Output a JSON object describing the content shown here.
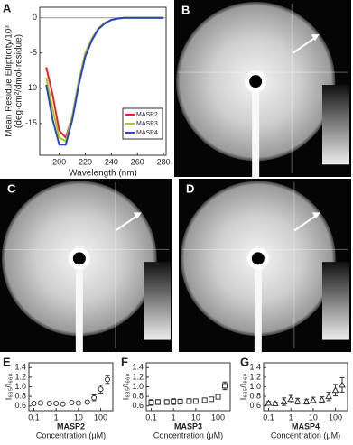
{
  "chart_data": [
    {
      "type": "line",
      "label": "A",
      "xlabel": "Wavelength (nm)",
      "ylabel": [
        "Mean Residue Ellipticity/10³",
        "(deg·cm²/dmol·residue)"
      ],
      "x": [
        190,
        195,
        200,
        205,
        210,
        215,
        220,
        225,
        230,
        235,
        240,
        245,
        250,
        255,
        260,
        265,
        270,
        275,
        280
      ],
      "series": [
        {
          "name": "MASP2",
          "color": "#e0262b",
          "values": [
            -7,
            -11,
            -16,
            -17,
            -14,
            -9,
            -5,
            -3,
            -1.5,
            -0.7,
            -0.3,
            -0.1,
            0,
            0,
            0,
            0,
            0,
            0,
            0
          ]
        },
        {
          "name": "MASP3",
          "color": "#a8c814",
          "values": [
            -8.5,
            -13,
            -17,
            -17.5,
            -14,
            -9,
            -5,
            -3,
            -1.5,
            -0.7,
            -0.3,
            -0.1,
            0,
            0,
            0,
            0,
            0,
            0,
            0
          ]
        },
        {
          "name": "MASP4",
          "color": "#2a46c8",
          "values": [
            -9.5,
            -14.5,
            -18,
            -18,
            -14.5,
            -9.5,
            -5.5,
            -3.2,
            -1.6,
            -0.8,
            -0.3,
            -0.1,
            0,
            0,
            0,
            0,
            0,
            0,
            0
          ]
        }
      ],
      "xlim": [
        185,
        282
      ],
      "xticks": [
        200,
        220,
        240,
        260,
        280
      ],
      "ylim": [
        -19.5,
        1.5
      ],
      "yticks": [
        0,
        -5,
        -10,
        -15
      ],
      "legend": "lower right"
    },
    {
      "type": "scatter",
      "label": "E",
      "xlabel": "Concentration (μM)",
      "ylabel": "I₆₃₅/I₆₆₀",
      "xscale": "log",
      "x": [
        0.1,
        0.2,
        0.5,
        1,
        2,
        5,
        10,
        25,
        50,
        100,
        200
      ],
      "series": [
        {
          "name": "MASP2",
          "color": "#333333",
          "marker": "circle",
          "values": [
            0.65,
            0.66,
            0.65,
            0.65,
            0.64,
            0.67,
            0.66,
            0.68,
            0.77,
            0.95,
            1.15
          ],
          "errors": [
            0.03,
            0.03,
            0.02,
            0.02,
            0.02,
            0.02,
            0.02,
            0.03,
            0.06,
            0.08,
            0.08
          ]
        }
      ],
      "xlim": [
        0.06,
        350
      ],
      "xticks": [
        0.1,
        1,
        10,
        100
      ],
      "ylim": [
        0.5,
        1.5
      ],
      "yticks": [
        0.6,
        0.8,
        {
          "value": 1,
          "label": "1.0"
        },
        1.2,
        1.4
      ]
    },
    {
      "type": "scatter",
      "label": "F",
      "xlabel": "Concentration (μM)",
      "ylabel": "I₆₃₅/I₆₆₀",
      "xscale": "log",
      "x": [
        0.1,
        0.2,
        0.5,
        1,
        2,
        5,
        10,
        25,
        50,
        100,
        200
      ],
      "series": [
        {
          "name": "MASP3",
          "color": "#333333",
          "marker": "square",
          "values": [
            0.67,
            0.68,
            0.68,
            0.69,
            0.69,
            0.7,
            0.7,
            0.72,
            0.74,
            0.79,
            1.02
          ],
          "errors": [
            0.06,
            0.05,
            0.05,
            0.06,
            0.05,
            0.05,
            0.04,
            0.04,
            0.04,
            0.04,
            0.08
          ]
        }
      ],
      "xlim": [
        0.06,
        350
      ],
      "xticks": [
        0.1,
        1,
        10,
        100
      ],
      "ylim": [
        0.5,
        1.5
      ],
      "yticks": [
        0.6,
        0.8,
        {
          "value": 1,
          "label": "1.0"
        },
        1.2,
        1.4
      ]
    },
    {
      "type": "scatter",
      "label": "G",
      "xlabel": "Concentration (μM)",
      "ylabel": "I₆₃₅/I₆₆₀",
      "xscale": "log",
      "x": [
        0.1,
        0.2,
        0.5,
        1,
        2,
        5,
        10,
        25,
        50,
        100,
        200
      ],
      "series": [
        {
          "name": "MASP4",
          "color": "#333333",
          "marker": "triangle",
          "values": [
            0.66,
            0.65,
            0.69,
            0.74,
            0.7,
            0.69,
            0.72,
            0.73,
            0.8,
            0.93,
            1.04
          ],
          "errors": [
            0.03,
            0.03,
            0.08,
            0.08,
            0.06,
            0.05,
            0.06,
            0.06,
            0.09,
            0.12,
            0.15
          ]
        }
      ],
      "xlim": [
        0.06,
        350
      ],
      "xticks": [
        0.1,
        1,
        10,
        100
      ],
      "ylim": [
        0.5,
        1.5
      ],
      "yticks": [
        0.6,
        0.8,
        {
          "value": 1,
          "label": "1.0"
        },
        1.2,
        1.4
      ]
    }
  ],
  "images": [
    {
      "label": "B"
    },
    {
      "label": "C"
    },
    {
      "label": "D"
    }
  ]
}
